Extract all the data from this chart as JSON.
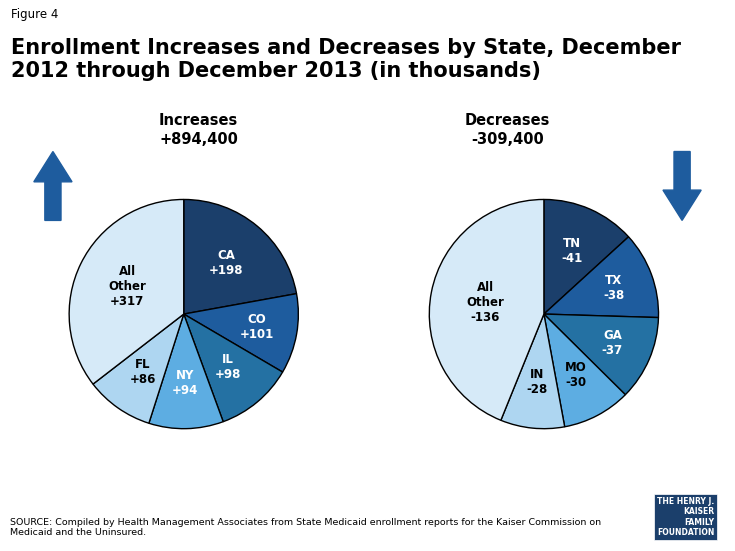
{
  "title_fig": "Figure 4",
  "title_main": "Enrollment Increases and Decreases by State, December\n2012 through December 2013 (in thousands)",
  "increase_label": "Increases\n+894,400",
  "decrease_label": "Decreases\n-309,400",
  "source_text": "SOURCE: Compiled by Health Management Associates from State Medicaid enrollment reports for the Kaiser Commission on\nMedicaid and the Uninsured.",
  "pie1": {
    "labels": [
      "CA\n+198",
      "CO\n+101",
      "IL\n+98",
      "NY\n+94",
      "FL\n+86",
      "All\nOther\n+317"
    ],
    "values": [
      198,
      101,
      98,
      94,
      86,
      317
    ],
    "colors": [
      "#1b3f6b",
      "#1e5c9e",
      "#2471a3",
      "#5dade2",
      "#aed6f1",
      "#d6eaf8"
    ],
    "text_colors": [
      "white",
      "white",
      "white",
      "white",
      "black",
      "black"
    ],
    "startangle": 90
  },
  "pie2": {
    "labels": [
      "TN\n-41",
      "TX\n-38",
      "GA\n-37",
      "MO\n-30",
      "IN\n-28",
      "All\nOther\n-136"
    ],
    "values": [
      41,
      38,
      37,
      30,
      28,
      136
    ],
    "colors": [
      "#1b3f6b",
      "#1e5c9e",
      "#2471a3",
      "#5dade2",
      "#aed6f1",
      "#d6eaf8"
    ],
    "text_colors": [
      "white",
      "white",
      "white",
      "black",
      "black",
      "black"
    ],
    "startangle": 90
  },
  "arrow_color": "#1e5c9e",
  "bg_color": "white",
  "logo_text": "THE HENRY J.\nKAISER\nFAMILY\nFOUNDATION",
  "logo_color": "#1b3f6b"
}
